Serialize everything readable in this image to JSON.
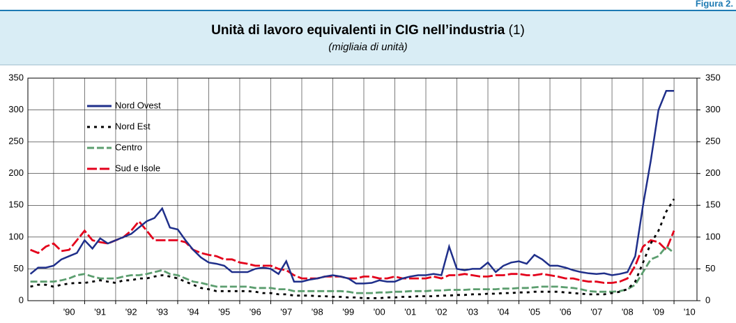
{
  "chart_data": {
    "type": "line",
    "figure_label": "Figura 2.",
    "title": "Unità di lavoro equivalenti in CIG nell’industria",
    "title_note": "(1)",
    "subtitle": "(migliaia di unità)",
    "x": [
      1989.25,
      1989.5,
      1989.75,
      1990,
      1990.25,
      1990.5,
      1990.75,
      1991,
      1991.25,
      1991.5,
      1991.75,
      1992,
      1992.25,
      1992.5,
      1992.75,
      1993,
      1993.25,
      1993.5,
      1993.75,
      1994,
      1994.25,
      1994.5,
      1994.75,
      1995,
      1995.25,
      1995.5,
      1995.75,
      1996,
      1996.25,
      1996.5,
      1996.75,
      1997,
      1997.25,
      1997.5,
      1997.75,
      1998,
      1998.25,
      1998.5,
      1998.75,
      1999,
      1999.25,
      1999.5,
      1999.75,
      2000,
      2000.25,
      2000.5,
      2000.75,
      2001,
      2001.25,
      2001.5,
      2001.75,
      2002,
      2002.25,
      2002.5,
      2002.75,
      2003,
      2003.25,
      2003.5,
      2003.75,
      2004,
      2004.25,
      2004.5,
      2004.75,
      2005,
      2005.25,
      2005.5,
      2005.75,
      2006,
      2006.25,
      2006.5,
      2006.75,
      2007,
      2007.25,
      2007.5,
      2007.75,
      2008,
      2008.25,
      2008.5,
      2008.75,
      2009,
      2009.25,
      2009.5,
      2009.75,
      2010
    ],
    "series": [
      {
        "name": "Nord Ovest",
        "color": "#1f2f8a",
        "dash": "none",
        "values": [
          42,
          52,
          52,
          55,
          65,
          70,
          75,
          95,
          82,
          98,
          90,
          95,
          100,
          105,
          115,
          125,
          130,
          145,
          115,
          112,
          95,
          80,
          68,
          60,
          58,
          55,
          45,
          45,
          45,
          50,
          52,
          50,
          42,
          62,
          30,
          30,
          33,
          35,
          38,
          40,
          38,
          35,
          27,
          27,
          28,
          32,
          30,
          30,
          35,
          38,
          40,
          40,
          42,
          40,
          85,
          50,
          48,
          50,
          50,
          60,
          45,
          55,
          60,
          62,
          58,
          72,
          65,
          55,
          55,
          52,
          48,
          45,
          43,
          42,
          43,
          40,
          42,
          45,
          70,
          150,
          220,
          300,
          330,
          330
        ]
      },
      {
        "name": "Nord Est",
        "color": "#000000",
        "dash": "4,6",
        "values": [
          22,
          25,
          25,
          22,
          25,
          27,
          28,
          28,
          30,
          32,
          30,
          28,
          32,
          32,
          35,
          35,
          38,
          40,
          38,
          35,
          30,
          25,
          20,
          18,
          15,
          15,
          15,
          15,
          15,
          14,
          12,
          12,
          10,
          10,
          8,
          8,
          8,
          7,
          7,
          6,
          6,
          5,
          5,
          4,
          4,
          4,
          5,
          5,
          6,
          6,
          7,
          7,
          7,
          8,
          8,
          9,
          9,
          10,
          10,
          11,
          11,
          12,
          12,
          13,
          13,
          14,
          14,
          14,
          14,
          13,
          12,
          11,
          10,
          10,
          10,
          12,
          14,
          18,
          30,
          60,
          90,
          110,
          140,
          160
        ]
      },
      {
        "name": "Centro",
        "color": "#5c9e6f",
        "dash": "10,4",
        "values": [
          30,
          30,
          30,
          30,
          32,
          35,
          40,
          42,
          38,
          35,
          35,
          35,
          38,
          40,
          40,
          42,
          45,
          48,
          42,
          40,
          35,
          30,
          28,
          25,
          22,
          22,
          22,
          22,
          22,
          20,
          20,
          20,
          18,
          18,
          15,
          15,
          15,
          15,
          15,
          15,
          15,
          14,
          12,
          12,
          12,
          13,
          13,
          14,
          14,
          15,
          15,
          15,
          16,
          16,
          17,
          17,
          17,
          18,
          18,
          18,
          18,
          19,
          19,
          20,
          20,
          21,
          22,
          22,
          22,
          21,
          20,
          18,
          15,
          14,
          14,
          14,
          15,
          18,
          25,
          45,
          65,
          70,
          85,
          75
        ]
      },
      {
        "name": "Sud e Isole",
        "color": "#e3001b",
        "dash": "14,4",
        "values": [
          80,
          75,
          85,
          90,
          78,
          80,
          95,
          110,
          95,
          92,
          90,
          95,
          100,
          110,
          125,
          110,
          95,
          95,
          95,
          95,
          92,
          80,
          75,
          72,
          70,
          65,
          65,
          60,
          58,
          55,
          55,
          55,
          50,
          48,
          40,
          35,
          35,
          35,
          38,
          38,
          38,
          35,
          35,
          38,
          38,
          35,
          35,
          38,
          35,
          35,
          35,
          35,
          38,
          35,
          40,
          40,
          42,
          40,
          38,
          38,
          40,
          40,
          42,
          42,
          40,
          40,
          42,
          40,
          38,
          35,
          35,
          32,
          30,
          30,
          28,
          28,
          30,
          35,
          55,
          85,
          95,
          92,
          80,
          110
        ]
      }
    ],
    "xlim": [
      1989.17,
      2010.74
    ],
    "xticks": [
      {
        "value": 1990,
        "label": "'90"
      },
      {
        "value": 1991,
        "label": "'91"
      },
      {
        "value": 1992,
        "label": "'92"
      },
      {
        "value": 1993,
        "label": "'93"
      },
      {
        "value": 1994,
        "label": "'94"
      },
      {
        "value": 1995,
        "label": "'95"
      },
      {
        "value": 1996,
        "label": "'96"
      },
      {
        "value": 1997,
        "label": "'97"
      },
      {
        "value": 1998,
        "label": "'98"
      },
      {
        "value": 1999,
        "label": "'99"
      },
      {
        "value": 2000,
        "label": "'00"
      },
      {
        "value": 2001,
        "label": "'01"
      },
      {
        "value": 2002,
        "label": "'02"
      },
      {
        "value": 2003,
        "label": "'03"
      },
      {
        "value": 2004,
        "label": "'04"
      },
      {
        "value": 2005,
        "label": "'05"
      },
      {
        "value": 2006,
        "label": "'06"
      },
      {
        "value": 2007,
        "label": "'07"
      },
      {
        "value": 2008,
        "label": "'08"
      },
      {
        "value": 2009,
        "label": "'09"
      },
      {
        "value": 2010,
        "label": "'10"
      }
    ],
    "ylim": [
      0,
      350
    ],
    "yticks": [
      0,
      50,
      100,
      150,
      200,
      250,
      300,
      350
    ],
    "y2lim": [
      0,
      350
    ],
    "y2ticks": [
      0,
      50,
      100,
      150,
      200,
      250,
      300,
      350
    ],
    "grid": true
  }
}
